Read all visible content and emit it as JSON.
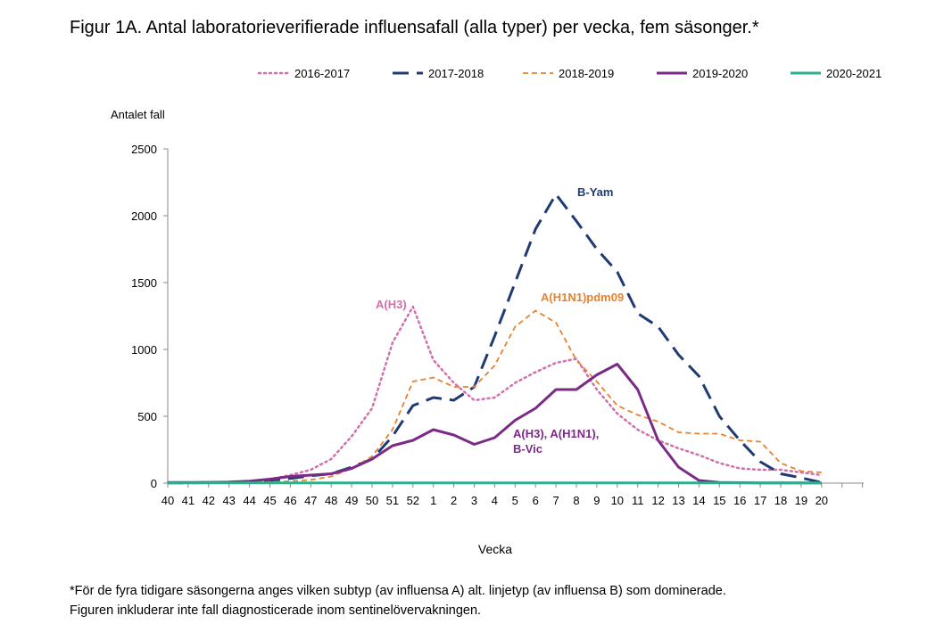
{
  "title": "Figur 1A. Antal laboratorieverifierade influensafall (alla typer) per vecka, fem säsonger.*",
  "footnote": [
    "*För de fyra tidigare säsongerna anges vilken subtyp (av influensa A) alt. linjetyp (av influensa B) som dominerade.",
    "Figuren inkluderar inte fall diagnosticerade inom sentinelövervakningen."
  ],
  "chart_data": {
    "type": "line",
    "title": "Figur 1A. Antal laboratorieverifierade influensafall (alla typer) per vecka, fem säsonger.*",
    "xlabel": "Vecka",
    "ylabel": "Antalet fall",
    "categories": [
      "40",
      "41",
      "42",
      "43",
      "44",
      "45",
      "46",
      "47",
      "48",
      "49",
      "50",
      "51",
      "52",
      "1",
      "2",
      "3",
      "4",
      "5",
      "6",
      "7",
      "8",
      "9",
      "10",
      "11",
      "12",
      "13",
      "14",
      "15",
      "16",
      "17",
      "18",
      "19",
      "20"
    ],
    "ylim": [
      0,
      2500
    ],
    "yticks": [
      0,
      500,
      1000,
      1500,
      2000,
      2500
    ],
    "grid": false,
    "legend_position": "top",
    "series": [
      {
        "name": "2016-2017",
        "color": "#d36fac",
        "style": "dotted",
        "values": [
          5,
          5,
          6,
          8,
          15,
          30,
          60,
          100,
          180,
          350,
          560,
          1050,
          1320,
          920,
          750,
          620,
          640,
          750,
          830,
          900,
          930,
          700,
          520,
          400,
          320,
          260,
          210,
          150,
          110,
          100,
          100,
          80,
          60
        ]
      },
      {
        "name": "2017-2018",
        "color": "#1f3b73",
        "style": "dashed",
        "values": [
          2,
          2,
          3,
          5,
          10,
          20,
          35,
          55,
          70,
          120,
          180,
          350,
          580,
          640,
          620,
          720,
          1100,
          1500,
          1900,
          2160,
          1960,
          1750,
          1580,
          1270,
          1170,
          960,
          800,
          500,
          320,
          160,
          70,
          40,
          5
        ]
      },
      {
        "name": "2018-2019",
        "color": "#e8822d",
        "style": "dashed",
        "values": [
          2,
          2,
          2,
          3,
          5,
          8,
          15,
          25,
          50,
          110,
          200,
          400,
          760,
          790,
          720,
          720,
          880,
          1170,
          1290,
          1200,
          920,
          760,
          580,
          510,
          460,
          380,
          370,
          370,
          320,
          310,
          150,
          90,
          80
        ]
      },
      {
        "name": "2019-2020",
        "color": "#7b2a86",
        "style": "solid",
        "values": [
          5,
          5,
          6,
          8,
          15,
          30,
          50,
          60,
          70,
          110,
          180,
          280,
          320,
          400,
          360,
          290,
          340,
          470,
          560,
          700,
          700,
          810,
          890,
          700,
          320,
          120,
          20,
          5,
          3,
          2,
          2,
          2,
          2
        ]
      },
      {
        "name": "2020-2021",
        "color": "#2fae8c",
        "style": "solid",
        "values": [
          2,
          2,
          2,
          2,
          2,
          2,
          2,
          2,
          2,
          2,
          2,
          2,
          2,
          2,
          2,
          2,
          2,
          2,
          2,
          2,
          2,
          2,
          2,
          2,
          2,
          2,
          2,
          2,
          2,
          2,
          2,
          2,
          2
        ]
      }
    ],
    "annotations": [
      {
        "text": "A(H3)",
        "series": "2016-2017"
      },
      {
        "text": "B-Yam",
        "series": "2017-2018"
      },
      {
        "text": "A(H1N1)pdm09",
        "series": "2018-2019"
      },
      {
        "text": "A(H3), A(H1N1),",
        "series": "2019-2020"
      },
      {
        "text": "B-Vic",
        "series": "2019-2020"
      }
    ]
  }
}
